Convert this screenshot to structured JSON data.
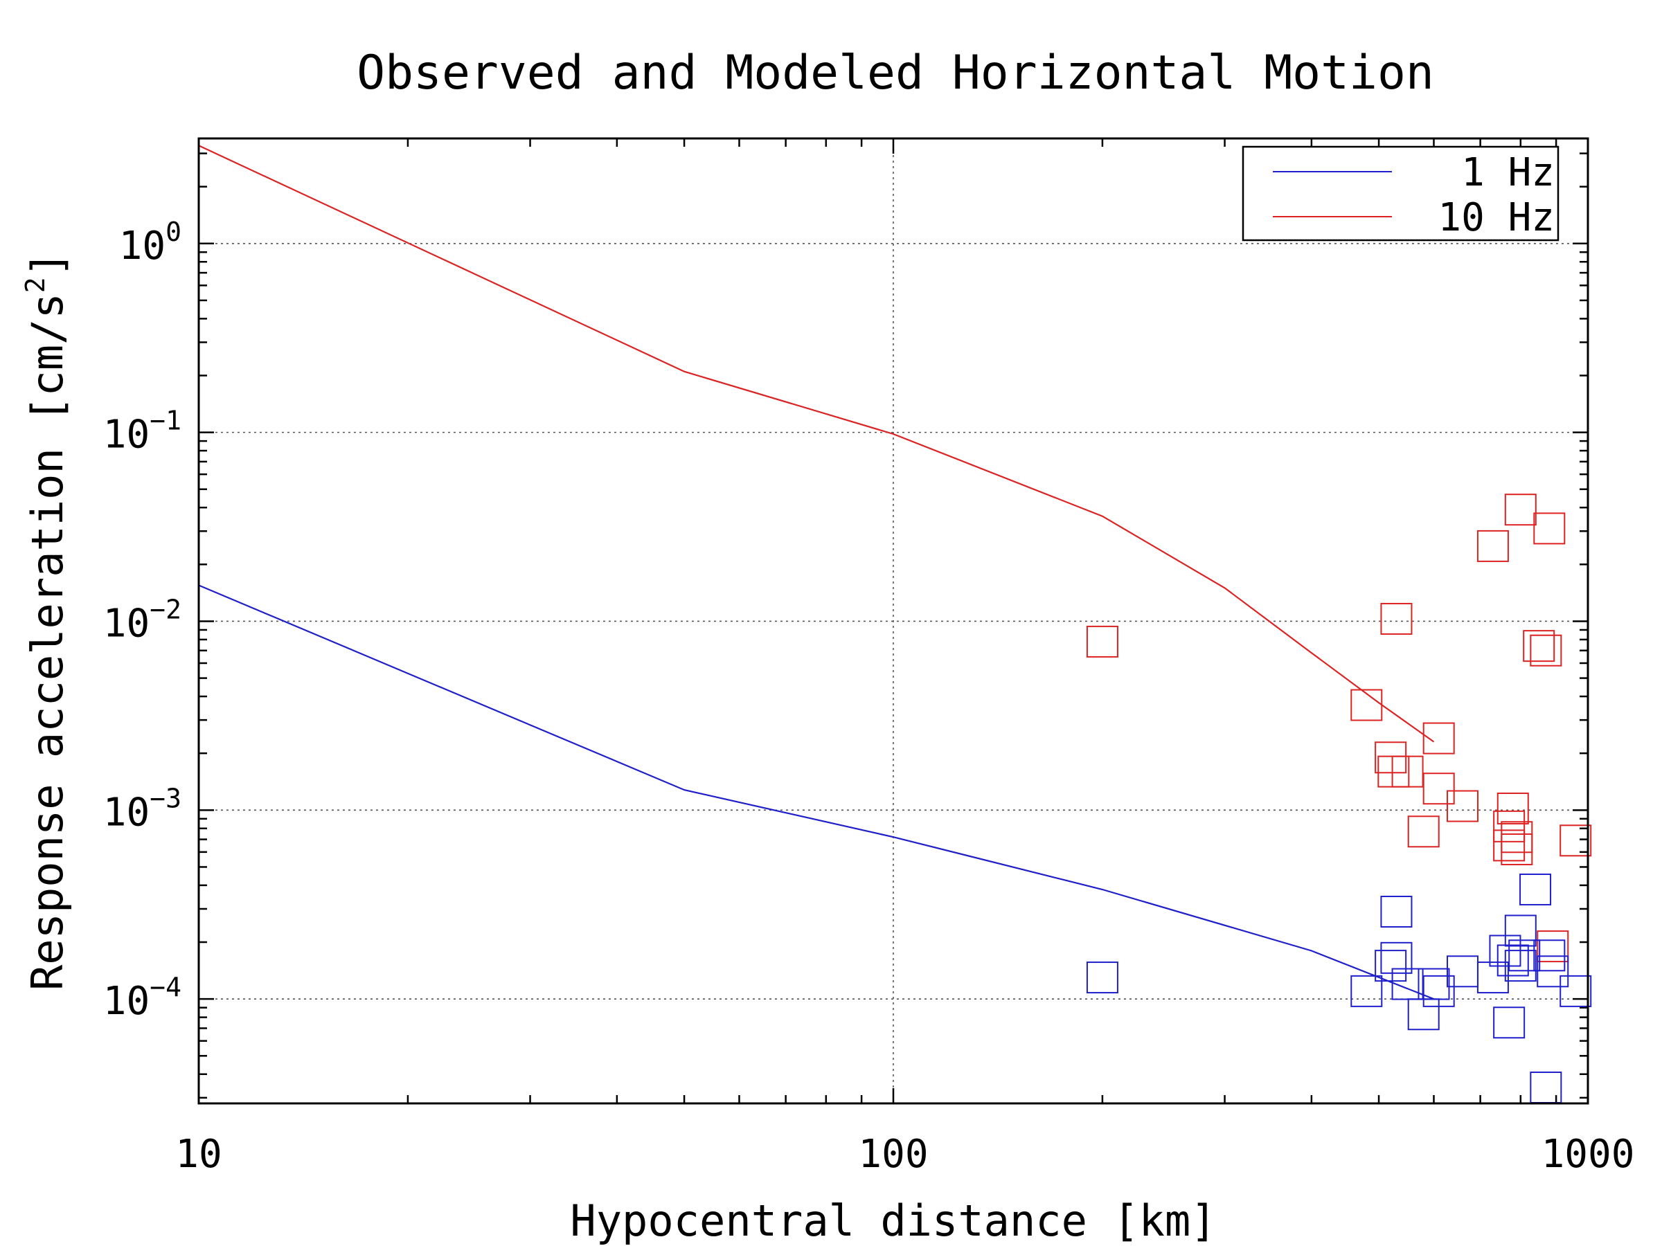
{
  "chart_data": {
    "type": "scatter",
    "title": "Observed and Modeled Horizontal Motion",
    "xlabel": "Hypocentral distance [km]",
    "ylabel": "Response acceleration [cm/s²]",
    "ylabel_parts": {
      "main": "Response acceleration [cm/s",
      "sup": "2",
      "tail": "]"
    },
    "xscale": "log",
    "yscale": "log",
    "xlim": [
      10,
      1000
    ],
    "ylim": [
      2.8e-05,
      3.6
    ],
    "xticks": [
      {
        "value": 10,
        "label": "10"
      },
      {
        "value": 100,
        "label": "100"
      },
      {
        "value": 1000,
        "label": "1000"
      }
    ],
    "yticks": [
      {
        "value": 1,
        "base": "10",
        "exp": "0"
      },
      {
        "value": 0.1,
        "base": "10",
        "exp": "−1"
      },
      {
        "value": 0.01,
        "base": "10",
        "exp": "−2"
      },
      {
        "value": 0.001,
        "base": "10",
        "exp": "−3"
      },
      {
        "value": 0.0001,
        "base": "10",
        "exp": "−4"
      }
    ],
    "grid": true,
    "legend_position": "top-right",
    "legend": [
      {
        "label": "1 Hz",
        "color": "#1f1fcc"
      },
      {
        "label": "10 Hz",
        "color": "#dd2222"
      }
    ],
    "series": [
      {
        "name": "1 Hz",
        "kind": "line",
        "color": "#1f1fcc",
        "x": [
          10,
          50,
          100,
          200,
          400,
          600
        ],
        "y": [
          0.0155,
          0.00128,
          0.00072,
          0.00038,
          0.00018,
          0.0001
        ]
      },
      {
        "name": "10 Hz",
        "kind": "line",
        "color": "#dd2222",
        "x": [
          10,
          50,
          100,
          200,
          300,
          400,
          500,
          600
        ],
        "y": [
          3.3,
          0.21,
          0.098,
          0.036,
          0.015,
          0.0068,
          0.0037,
          0.0023
        ]
      },
      {
        "kind": "scatter",
        "color": "#dd2222",
        "x": [
          200,
          480,
          530,
          520,
          525,
          550,
          580,
          610,
          610,
          660,
          730,
          780,
          770,
          770,
          790,
          790,
          800,
          850,
          880,
          870,
          890,
          960
        ],
        "y": [
          0.0078,
          0.0036,
          0.0103,
          0.0019,
          0.0016,
          0.0016,
          0.00077,
          0.0024,
          0.0013,
          0.00105,
          0.025,
          0.00102,
          0.00082,
          0.00065,
          0.00062,
          0.00072,
          0.039,
          0.0074,
          0.031,
          0.007,
          0.00019,
          0.00069
        ]
      },
      {
        "kind": "scatter",
        "color": "#1f1fcc",
        "x": [
          200,
          480,
          530,
          530,
          520,
          550,
          580,
          600,
          610,
          660,
          730,
          760,
          780,
          770,
          800,
          800,
          810,
          840,
          870,
          880,
          890,
          960
        ],
        "y": [
          0.00013,
          0.00011,
          0.00029,
          0.000165,
          0.00015,
          0.00012,
          8.3e-05,
          0.00012,
          0.00011,
          0.00014,
          0.00013,
          0.00018,
          0.00016,
          7.5e-05,
          0.00023,
          0.00015,
          0.00017,
          0.00038,
          3.4e-05,
          0.00017,
          0.00014,
          0.00011
        ]
      }
    ]
  }
}
